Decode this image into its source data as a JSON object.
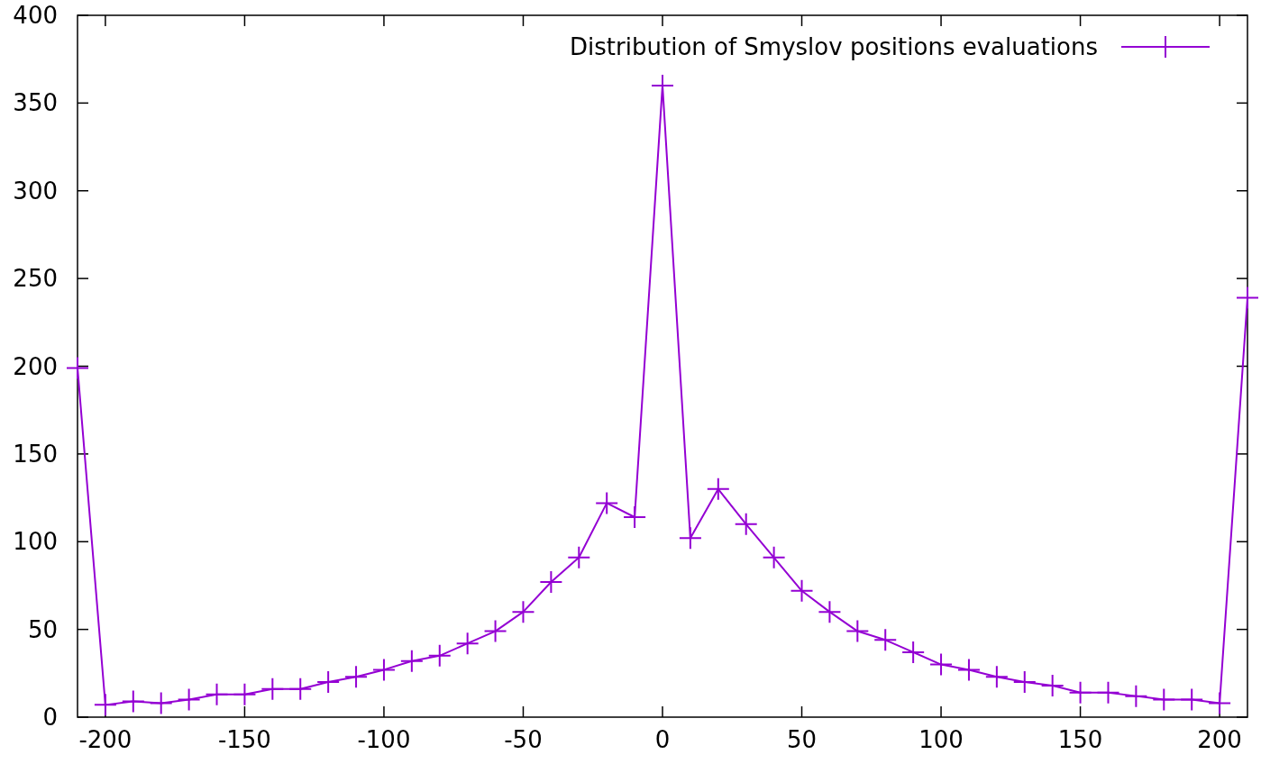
{
  "chart_data": {
    "type": "line",
    "x": [
      -210,
      -200,
      -190,
      -180,
      -170,
      -160,
      -150,
      -140,
      -130,
      -120,
      -110,
      -100,
      -90,
      -80,
      -70,
      -60,
      -50,
      -40,
      -30,
      -20,
      -10,
      0,
      10,
      20,
      30,
      40,
      50,
      60,
      70,
      80,
      90,
      100,
      110,
      120,
      130,
      140,
      150,
      160,
      170,
      180,
      190,
      200,
      210
    ],
    "series": [
      {
        "name": "Distribution of Smyslov positions evaluations",
        "color": "#9400d3",
        "values": [
          199,
          7,
          9,
          8,
          10,
          13,
          13,
          16,
          16,
          20,
          23,
          27,
          32,
          35,
          42,
          49,
          60,
          77,
          91,
          122,
          114,
          360,
          102,
          130,
          110,
          91,
          72,
          60,
          49,
          44,
          37,
          30,
          27,
          23,
          20,
          18,
          14,
          14,
          12,
          10,
          10,
          8,
          239
        ]
      }
    ],
    "xlim": [
      -210,
      210
    ],
    "xticks": [
      -200,
      -150,
      -100,
      -50,
      0,
      50,
      100,
      150,
      200
    ],
    "ylim": [
      0,
      400
    ],
    "yticks": [
      0,
      50,
      100,
      150,
      200,
      250,
      300,
      350,
      400
    ],
    "marker": "cross",
    "line_style": "solid",
    "legend": "top right",
    "grid": false
  }
}
